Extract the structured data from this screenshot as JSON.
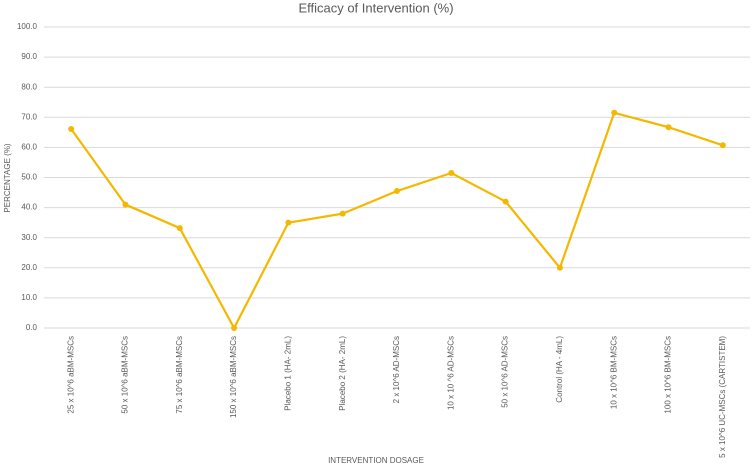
{
  "chart_data": {
    "type": "line",
    "title": "Efficacy of Intervention (%)",
    "x_label": "INTERVENTION DOSAGE",
    "y_label": "PERCENTAGE (%)",
    "categories": [
      "25 x 10^6  aBM-MSCs",
      "50 x 10^6  aBM-MSCs",
      "75 x 10^6  aBM-MSCs",
      "150 x 10^6  aBM-MSCs",
      "Placebo 1 (HA- 2mL)",
      "Placebo 2 (HA- 2mL)",
      "2 x 10^6 AD-MSCs",
      "10 x 10 ^6 AD-MSCs",
      "50 x 10^6 AD-MSCs",
      "Control (HA - 4mL)",
      "10 x 10^6 BM-MSCs",
      "100 x 10^6 BM-MSCs",
      "5 x 10^6 UC-MSCs (CARTISTEM)"
    ],
    "values": [
      66.1,
      41.0,
      33.2,
      0.0,
      35.0,
      38.0,
      45.5,
      51.5,
      42.0,
      20.0,
      71.5,
      66.7,
      60.7
    ],
    "color": "#f5b800",
    "ylim": [
      0,
      100
    ],
    "yticks": [
      {
        "value": 0,
        "label": "0.0"
      },
      {
        "value": 10,
        "label": "10.0"
      },
      {
        "value": 20,
        "label": "20.0"
      },
      {
        "value": 30,
        "label": "30.0"
      },
      {
        "value": 40,
        "label": "40.0"
      },
      {
        "value": 50,
        "label": "50.0"
      },
      {
        "value": 60,
        "label": "60.0"
      },
      {
        "value": 70,
        "label": "70.0"
      },
      {
        "value": 80,
        "label": "80.0"
      },
      {
        "value": 90,
        "label": "90.0"
      },
      {
        "value": 100,
        "label": "100.0"
      }
    ],
    "grid": true
  }
}
